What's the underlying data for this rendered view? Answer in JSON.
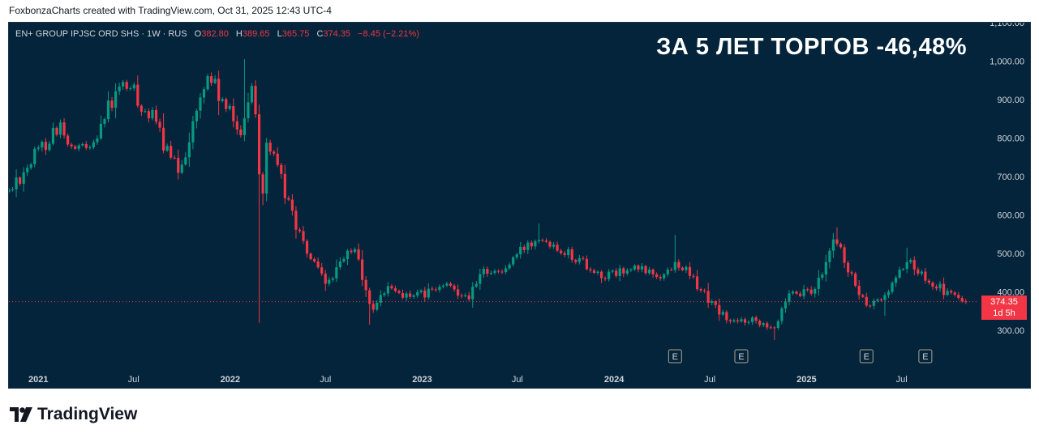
{
  "caption": "FoxbonzaCharts created with TradingView.com, Oct 31, 2025 12:43 UTC-4",
  "brand": {
    "name": "TradingView",
    "logo_icon": "tradingview-logo-icon"
  },
  "legend": {
    "symbol": "EN+ GROUP IPJSC ORD SHS · 1W · RUS",
    "open_label": "O",
    "open": "382.80",
    "high_label": "H",
    "high": "389.65",
    "low_label": "L",
    "low": "365.75",
    "close_label": "C",
    "close": "374.35",
    "change": "−8.45 (−2.21%)"
  },
  "headline": "ЗА 5 ЛЕТ ТОРГОВ -46,48%",
  "price_tag": {
    "price": "374.35",
    "countdown": "1d 5h"
  },
  "colors": {
    "background": "#03243a",
    "up": "#089981",
    "down": "#f23645",
    "text": "#d1d4dc"
  },
  "chart_data": {
    "type": "candlestick",
    "interval": "1W",
    "grid": false,
    "y_axis": {
      "range": [
        220,
        1100
      ],
      "ticks": [
        "300.00",
        "400.00",
        "500.00",
        "600.00",
        "700.00",
        "800.00",
        "900.00",
        "1,000.00",
        "1,100.00"
      ],
      "tick_values": [
        300,
        400,
        500,
        600,
        700,
        800,
        900,
        1000,
        1100
      ]
    },
    "x_axis": {
      "range": [
        "2020-11-06",
        "2025-11-25"
      ],
      "ticks": [
        {
          "label": "2021",
          "date": "2021-01-01",
          "major": true
        },
        {
          "label": "Jul",
          "date": "2021-07-01",
          "major": false
        },
        {
          "label": "2022",
          "date": "2022-01-01",
          "major": true
        },
        {
          "label": "Jul",
          "date": "2022-07-01",
          "major": false
        },
        {
          "label": "2023",
          "date": "2023-01-01",
          "major": true
        },
        {
          "label": "Jul",
          "date": "2023-07-01",
          "major": false
        },
        {
          "label": "2024",
          "date": "2024-01-01",
          "major": true
        },
        {
          "label": "Jul",
          "date": "2024-07-01",
          "major": false
        },
        {
          "label": "2025",
          "date": "2025-01-01",
          "major": true
        },
        {
          "label": "Jul",
          "date": "2025-07-01",
          "major": false
        }
      ]
    },
    "last_price": 374.35,
    "earnings_markers": [
      {
        "date": "2024-04-26",
        "label": "E"
      },
      {
        "date": "2024-08-30",
        "label": "E"
      },
      {
        "date": "2025-04-25",
        "label": "E"
      },
      {
        "date": "2025-08-15",
        "label": "E"
      }
    ],
    "close_path": [
      [
        "2020-11-06",
        660
      ],
      [
        "2020-12-01",
        710
      ],
      [
        "2021-01-15",
        790
      ],
      [
        "2021-02-10",
        840
      ],
      [
        "2021-03-01",
        760
      ],
      [
        "2021-04-01",
        770
      ],
      [
        "2021-05-01",
        840
      ],
      [
        "2021-06-01",
        920
      ],
      [
        "2021-06-20",
        940
      ],
      [
        "2021-07-15",
        890
      ],
      [
        "2021-08-15",
        830
      ],
      [
        "2021-09-10",
        740
      ],
      [
        "2021-09-25",
        720
      ],
      [
        "2021-10-20",
        820
      ],
      [
        "2021-11-20",
        970
      ],
      [
        "2021-12-20",
        880
      ],
      [
        "2022-01-20",
        820
      ],
      [
        "2022-02-10",
        930
      ],
      [
        "2022-02-18",
        880
      ],
      [
        "2022-03-01",
        610
      ],
      [
        "2022-03-10",
        800
      ],
      [
        "2022-04-10",
        680
      ],
      [
        "2022-05-20",
        520
      ],
      [
        "2022-07-01",
        420
      ],
      [
        "2022-07-25",
        460
      ],
      [
        "2022-08-25",
        520
      ],
      [
        "2022-09-25",
        350
      ],
      [
        "2022-10-25",
        410
      ],
      [
        "2022-12-15",
        385
      ],
      [
        "2023-02-15",
        415
      ],
      [
        "2023-04-01",
        390
      ],
      [
        "2023-05-01",
        460
      ],
      [
        "2023-06-01",
        450
      ],
      [
        "2023-07-10",
        510
      ],
      [
        "2023-08-10",
        550
      ],
      [
        "2023-09-15",
        520
      ],
      [
        "2023-11-01",
        480
      ],
      [
        "2023-12-10",
        440
      ],
      [
        "2024-02-15",
        460
      ],
      [
        "2024-04-01",
        440
      ],
      [
        "2024-05-01",
        480
      ],
      [
        "2024-05-25",
        440
      ],
      [
        "2024-07-10",
        360
      ],
      [
        "2024-08-10",
        320
      ],
      [
        "2024-09-20",
        330
      ],
      [
        "2024-11-01",
        310
      ],
      [
        "2024-12-01",
        390
      ],
      [
        "2025-01-15",
        400
      ],
      [
        "2025-02-15",
        510
      ],
      [
        "2025-03-01",
        540
      ],
      [
        "2025-03-15",
        470
      ],
      [
        "2025-04-25",
        360
      ],
      [
        "2025-06-01",
        390
      ],
      [
        "2025-06-25",
        450
      ],
      [
        "2025-07-10",
        480
      ],
      [
        "2025-08-15",
        440
      ],
      [
        "2025-09-20",
        400
      ],
      [
        "2025-10-31",
        374.35
      ]
    ],
    "spikes": [
      {
        "date": "2022-01-30",
        "high": 1005
      },
      {
        "date": "2022-02-25",
        "low": 320
      },
      {
        "date": "2022-09-25",
        "low": 315
      },
      {
        "date": "2023-08-10",
        "high": 578
      },
      {
        "date": "2024-04-26",
        "high": 548
      },
      {
        "date": "2024-11-01",
        "low": 275
      },
      {
        "date": "2025-03-01",
        "high": 568
      },
      {
        "date": "2025-06-01",
        "low": 338
      },
      {
        "date": "2025-07-10",
        "high": 515
      }
    ]
  }
}
